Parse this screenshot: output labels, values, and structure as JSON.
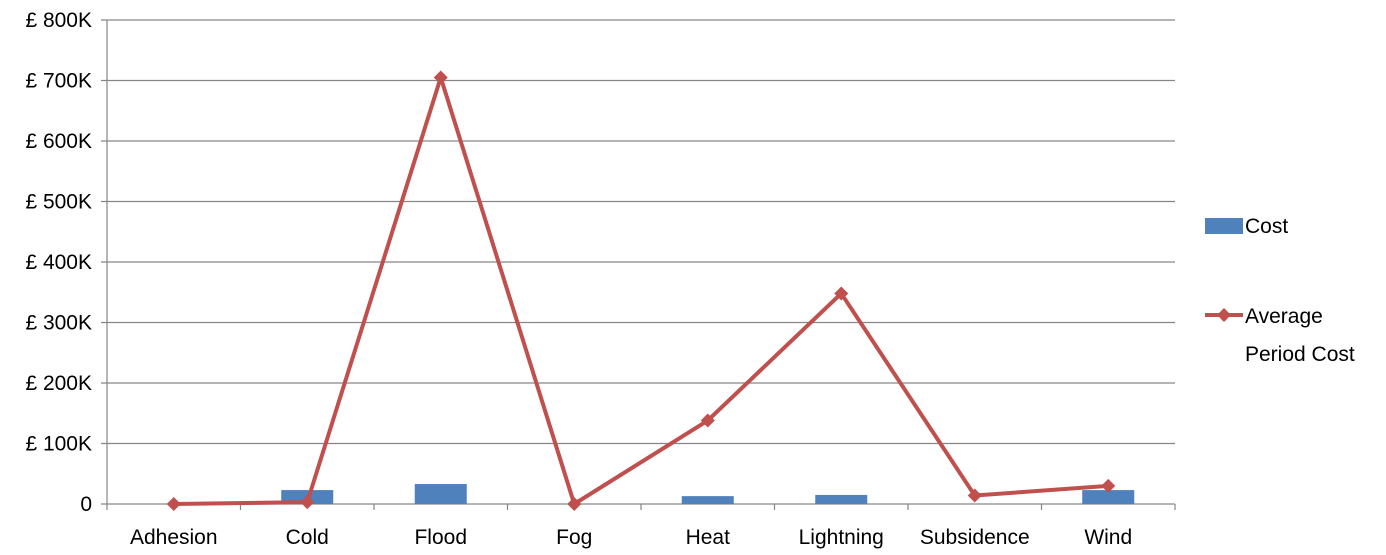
{
  "chart_data": {
    "type": "bar",
    "categories": [
      "Adhesion",
      "Cold",
      "Flood",
      "Fog",
      "Heat",
      "Lightning",
      "Subsidence",
      "Wind"
    ],
    "series": [
      {
        "name": "Cost",
        "type": "bar",
        "color": "#4f81bd",
        "values": [
          0,
          23000,
          33000,
          0,
          13000,
          15000,
          0,
          23000
        ]
      },
      {
        "name": "Average Period Cost",
        "type": "line",
        "color": "#c0504d",
        "marker": "diamond",
        "values": [
          0,
          3000,
          705000,
          0,
          138000,
          348000,
          14000,
          30000
        ]
      }
    ],
    "ylim": [
      0,
      800000
    ],
    "yticks": [
      0,
      100000,
      200000,
      300000,
      400000,
      500000,
      600000,
      700000,
      800000
    ],
    "ytick_labels": [
      "0",
      "£ 100K",
      "£ 200K",
      "£ 300K",
      "£ 400K",
      "£ 500K",
      "£ 600K",
      "£ 700K",
      "£ 800K"
    ],
    "grid": true,
    "legend_position": "right",
    "legend": [
      {
        "label_lines": [
          "Cost"
        ]
      },
      {
        "label_lines": [
          "Average",
          "Period Cost"
        ]
      }
    ]
  }
}
